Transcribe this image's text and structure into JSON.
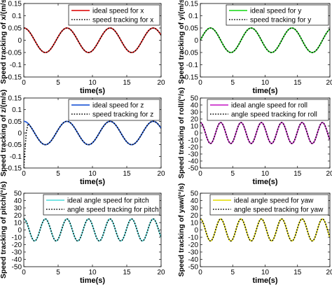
{
  "chart_data": [
    {
      "type": "line",
      "xlabel": "time(s)",
      "ylabel": "Speed tracking of x/(m/s)",
      "xlim": [
        0,
        20
      ],
      "ylim": [
        -0.15,
        0.15
      ],
      "xticks": [
        "0",
        "5",
        "10",
        "15",
        "20"
      ],
      "yticks": [
        "-0.15",
        "-0.1",
        "-0.05",
        "0",
        "0.05",
        "0.1",
        "0.15"
      ],
      "legend_position": "top-right",
      "grid": false,
      "series": [
        {
          "name": "ideal speed for x",
          "style": "solid",
          "color": "#e02020",
          "function": "0.05*cos(t)",
          "x_start": 0,
          "x_end": 20,
          "peaks": [
            [
              0,
              0.05
            ],
            [
              3.14,
              -0.05
            ],
            [
              6.28,
              0.05
            ],
            [
              9.42,
              -0.05
            ],
            [
              12.57,
              0.05
            ],
            [
              15.71,
              -0.05
            ],
            [
              18.85,
              0.05
            ]
          ]
        },
        {
          "name": "speed tracking for x",
          "style": "dotted",
          "color": "#000000",
          "function": "0.05*cos(t)",
          "x_start": 0,
          "x_end": 20,
          "peaks": [
            [
              0,
              0.05
            ],
            [
              3.14,
              -0.05
            ],
            [
              6.28,
              0.05
            ],
            [
              9.42,
              -0.05
            ],
            [
              12.57,
              0.05
            ],
            [
              15.71,
              -0.05
            ],
            [
              18.85,
              0.05
            ]
          ]
        }
      ]
    },
    {
      "type": "line",
      "xlabel": "time(s)",
      "ylabel": "Speed tracking of y/(m/s)",
      "xlim": [
        0,
        20
      ],
      "ylim": [
        -0.15,
        0.15
      ],
      "xticks": [
        "0",
        "5",
        "10",
        "15",
        "20"
      ],
      "yticks": [
        "-0.15",
        "-0.1",
        "-0.05",
        "0",
        "0.05",
        "0.1",
        "0.15"
      ],
      "legend_position": "top-right",
      "grid": false,
      "series": [
        {
          "name": "ideal speed for y",
          "style": "solid",
          "color": "#33dd33",
          "function": "0.05*sin(t)",
          "x_start": 0,
          "x_end": 20,
          "peaks": [
            [
              1.57,
              0.05
            ],
            [
              4.71,
              -0.05
            ],
            [
              7.85,
              0.05
            ],
            [
              11.0,
              -0.05
            ],
            [
              14.14,
              0.05
            ],
            [
              17.28,
              -0.05
            ]
          ]
        },
        {
          "name": "speed tracking for y",
          "style": "dotted",
          "color": "#000000",
          "function": "0.05*sin(t)",
          "x_start": 0,
          "x_end": 20,
          "peaks": [
            [
              1.57,
              0.05
            ],
            [
              4.71,
              -0.05
            ],
            [
              7.85,
              0.05
            ],
            [
              11.0,
              -0.05
            ],
            [
              14.14,
              0.05
            ],
            [
              17.28,
              -0.05
            ]
          ]
        }
      ]
    },
    {
      "type": "line",
      "xlabel": "time(s)",
      "ylabel": "Speed tracking of z/(m/s)",
      "xlim": [
        0,
        20
      ],
      "ylim": [
        -0.15,
        0.15
      ],
      "xticks": [
        "0",
        "5",
        "10",
        "15",
        "20"
      ],
      "yticks": [
        "-0.15",
        "-0.1",
        "-0.05",
        "0",
        "0.05",
        "0.1",
        "0.15"
      ],
      "legend_position": "top-right",
      "grid": false,
      "series": [
        {
          "name": "ideal speed for z",
          "style": "solid",
          "color": "#2a5fd8",
          "function": "0.05*cos(t)",
          "x_start": 0,
          "x_end": 20,
          "peaks": [
            [
              0,
              0.05
            ],
            [
              3.14,
              -0.05
            ],
            [
              6.28,
              0.05
            ],
            [
              9.42,
              -0.05
            ],
            [
              12.57,
              0.05
            ],
            [
              15.71,
              -0.05
            ],
            [
              18.85,
              0.05
            ]
          ]
        },
        {
          "name": "speed tracking for z",
          "style": "dotted",
          "color": "#000000",
          "function": "0.05*cos(t)",
          "x_start": 0,
          "x_end": 20,
          "initial_transient": [
            [
              0,
              -0.15
            ],
            [
              0.15,
              -0.08
            ],
            [
              0.35,
              0.0
            ],
            [
              0.6,
              0.04
            ]
          ],
          "peaks": [
            [
              3.14,
              -0.05
            ],
            [
              6.28,
              0.05
            ],
            [
              9.42,
              -0.05
            ],
            [
              12.57,
              0.05
            ],
            [
              15.71,
              -0.05
            ],
            [
              18.85,
              0.05
            ]
          ]
        }
      ]
    },
    {
      "type": "line",
      "xlabel": "time(s)",
      "ylabel": "Speed tracking of roll/(°/s)",
      "xlim": [
        0,
        20
      ],
      "ylim": [
        -50,
        50
      ],
      "xticks": [
        "0",
        "5",
        "10",
        "15",
        "20"
      ],
      "yticks": [
        "-50",
        "-40",
        "-30",
        "-20",
        "-10",
        "0",
        "10",
        "20",
        "30",
        "40",
        "50"
      ],
      "legend_position": "top-right",
      "grid": false,
      "series": [
        {
          "name": "ideal angle speed for roll",
          "style": "solid",
          "color": "#cc33cc",
          "function": "15*cos(2t)",
          "x_start": 0,
          "x_end": 20,
          "peaks": [
            [
              0,
              15
            ],
            [
              1.57,
              -15
            ],
            [
              3.14,
              15
            ],
            [
              4.71,
              -15
            ],
            [
              6.28,
              15
            ],
            [
              7.85,
              -15
            ],
            [
              9.42,
              15
            ],
            [
              11.0,
              -15
            ],
            [
              12.57,
              15
            ],
            [
              14.14,
              -15
            ],
            [
              15.71,
              15
            ],
            [
              17.28,
              -15
            ],
            [
              18.85,
              15
            ]
          ]
        },
        {
          "name": "angle speed tracking for roll",
          "style": "dotted",
          "color": "#000000",
          "function": "15*cos(2t)",
          "x_start": 0,
          "x_end": 20,
          "peaks": [
            [
              0,
              15
            ],
            [
              1.57,
              -15
            ],
            [
              3.14,
              15
            ],
            [
              4.71,
              -15
            ],
            [
              6.28,
              15
            ],
            [
              7.85,
              -15
            ],
            [
              9.42,
              15
            ],
            [
              11.0,
              -15
            ],
            [
              12.57,
              15
            ],
            [
              14.14,
              -15
            ],
            [
              15.71,
              15
            ],
            [
              17.28,
              -15
            ],
            [
              18.85,
              15
            ]
          ]
        }
      ]
    },
    {
      "type": "line",
      "xlabel": "time(s)",
      "ylabel": "Speed tracking of pitch/(°/s)",
      "xlim": [
        0,
        20
      ],
      "ylim": [
        -50,
        50
      ],
      "xticks": [
        "0",
        "5",
        "10",
        "15",
        "20"
      ],
      "yticks": [
        "-50",
        "-40",
        "-30",
        "-20",
        "-10",
        "0",
        "10",
        "20",
        "30",
        "40",
        "50"
      ],
      "legend_position": "top-right",
      "grid": false,
      "series": [
        {
          "name": "ideal angle speed for pitch",
          "style": "solid",
          "color": "#66e0e0",
          "function": "15*cos(2t)",
          "x_start": 0,
          "x_end": 20,
          "peaks": [
            [
              0,
              15
            ],
            [
              1.57,
              -15
            ],
            [
              3.14,
              15
            ],
            [
              4.71,
              -15
            ],
            [
              6.28,
              15
            ],
            [
              7.85,
              -15
            ],
            [
              9.42,
              15
            ],
            [
              11.0,
              -15
            ],
            [
              12.57,
              15
            ],
            [
              14.14,
              -15
            ],
            [
              15.71,
              15
            ],
            [
              17.28,
              -15
            ],
            [
              18.85,
              15
            ]
          ]
        },
        {
          "name": "angle speed tracking for pitch",
          "style": "dotted",
          "color": "#000000",
          "function": "15*cos(2t)",
          "x_start": 0,
          "x_end": 20,
          "peaks": [
            [
              0,
              15
            ],
            [
              1.57,
              -15
            ],
            [
              3.14,
              15
            ],
            [
              4.71,
              -15
            ],
            [
              6.28,
              15
            ],
            [
              7.85,
              -15
            ],
            [
              9.42,
              15
            ],
            [
              11.0,
              -15
            ],
            [
              12.57,
              15
            ],
            [
              14.14,
              -15
            ],
            [
              15.71,
              15
            ],
            [
              17.28,
              -15
            ],
            [
              18.85,
              15
            ]
          ]
        }
      ]
    },
    {
      "type": "line",
      "xlabel": "time(s)",
      "ylabel": "Speed tracking of yaw/(°/s)",
      "xlim": [
        0,
        20
      ],
      "ylim": [
        -50,
        50
      ],
      "xticks": [
        "0",
        "5",
        "10",
        "15",
        "20"
      ],
      "yticks": [
        "-50",
        "-40",
        "-30",
        "-20",
        "-10",
        "0",
        "10",
        "20",
        "30",
        "40",
        "50"
      ],
      "legend_position": "top-right",
      "grid": false,
      "series": [
        {
          "name": "ideal angle speed for yaw",
          "style": "solid",
          "color": "#e8e020",
          "function": "15*cos(2t)",
          "x_start": 0,
          "x_end": 20,
          "peaks": [
            [
              0,
              15
            ],
            [
              1.57,
              -15
            ],
            [
              3.14,
              15
            ],
            [
              4.71,
              -15
            ],
            [
              6.28,
              15
            ],
            [
              7.85,
              -15
            ],
            [
              9.42,
              15
            ],
            [
              11.0,
              -15
            ],
            [
              12.57,
              15
            ],
            [
              14.14,
              -15
            ],
            [
              15.71,
              15
            ],
            [
              17.28,
              -15
            ],
            [
              18.85,
              15
            ]
          ]
        },
        {
          "name": "angle speed tracking for yaw",
          "style": "dotted",
          "color": "#000000",
          "function": "15*cos(2t)",
          "x_start": 0,
          "x_end": 20,
          "peaks": [
            [
              0,
              15
            ],
            [
              1.57,
              -15
            ],
            [
              3.14,
              15
            ],
            [
              4.71,
              -15
            ],
            [
              6.28,
              15
            ],
            [
              7.85,
              -15
            ],
            [
              9.42,
              15
            ],
            [
              11.0,
              -15
            ],
            [
              12.57,
              15
            ],
            [
              14.14,
              -15
            ],
            [
              15.71,
              15
            ],
            [
              17.28,
              -15
            ],
            [
              18.85,
              15
            ]
          ]
        }
      ]
    }
  ]
}
